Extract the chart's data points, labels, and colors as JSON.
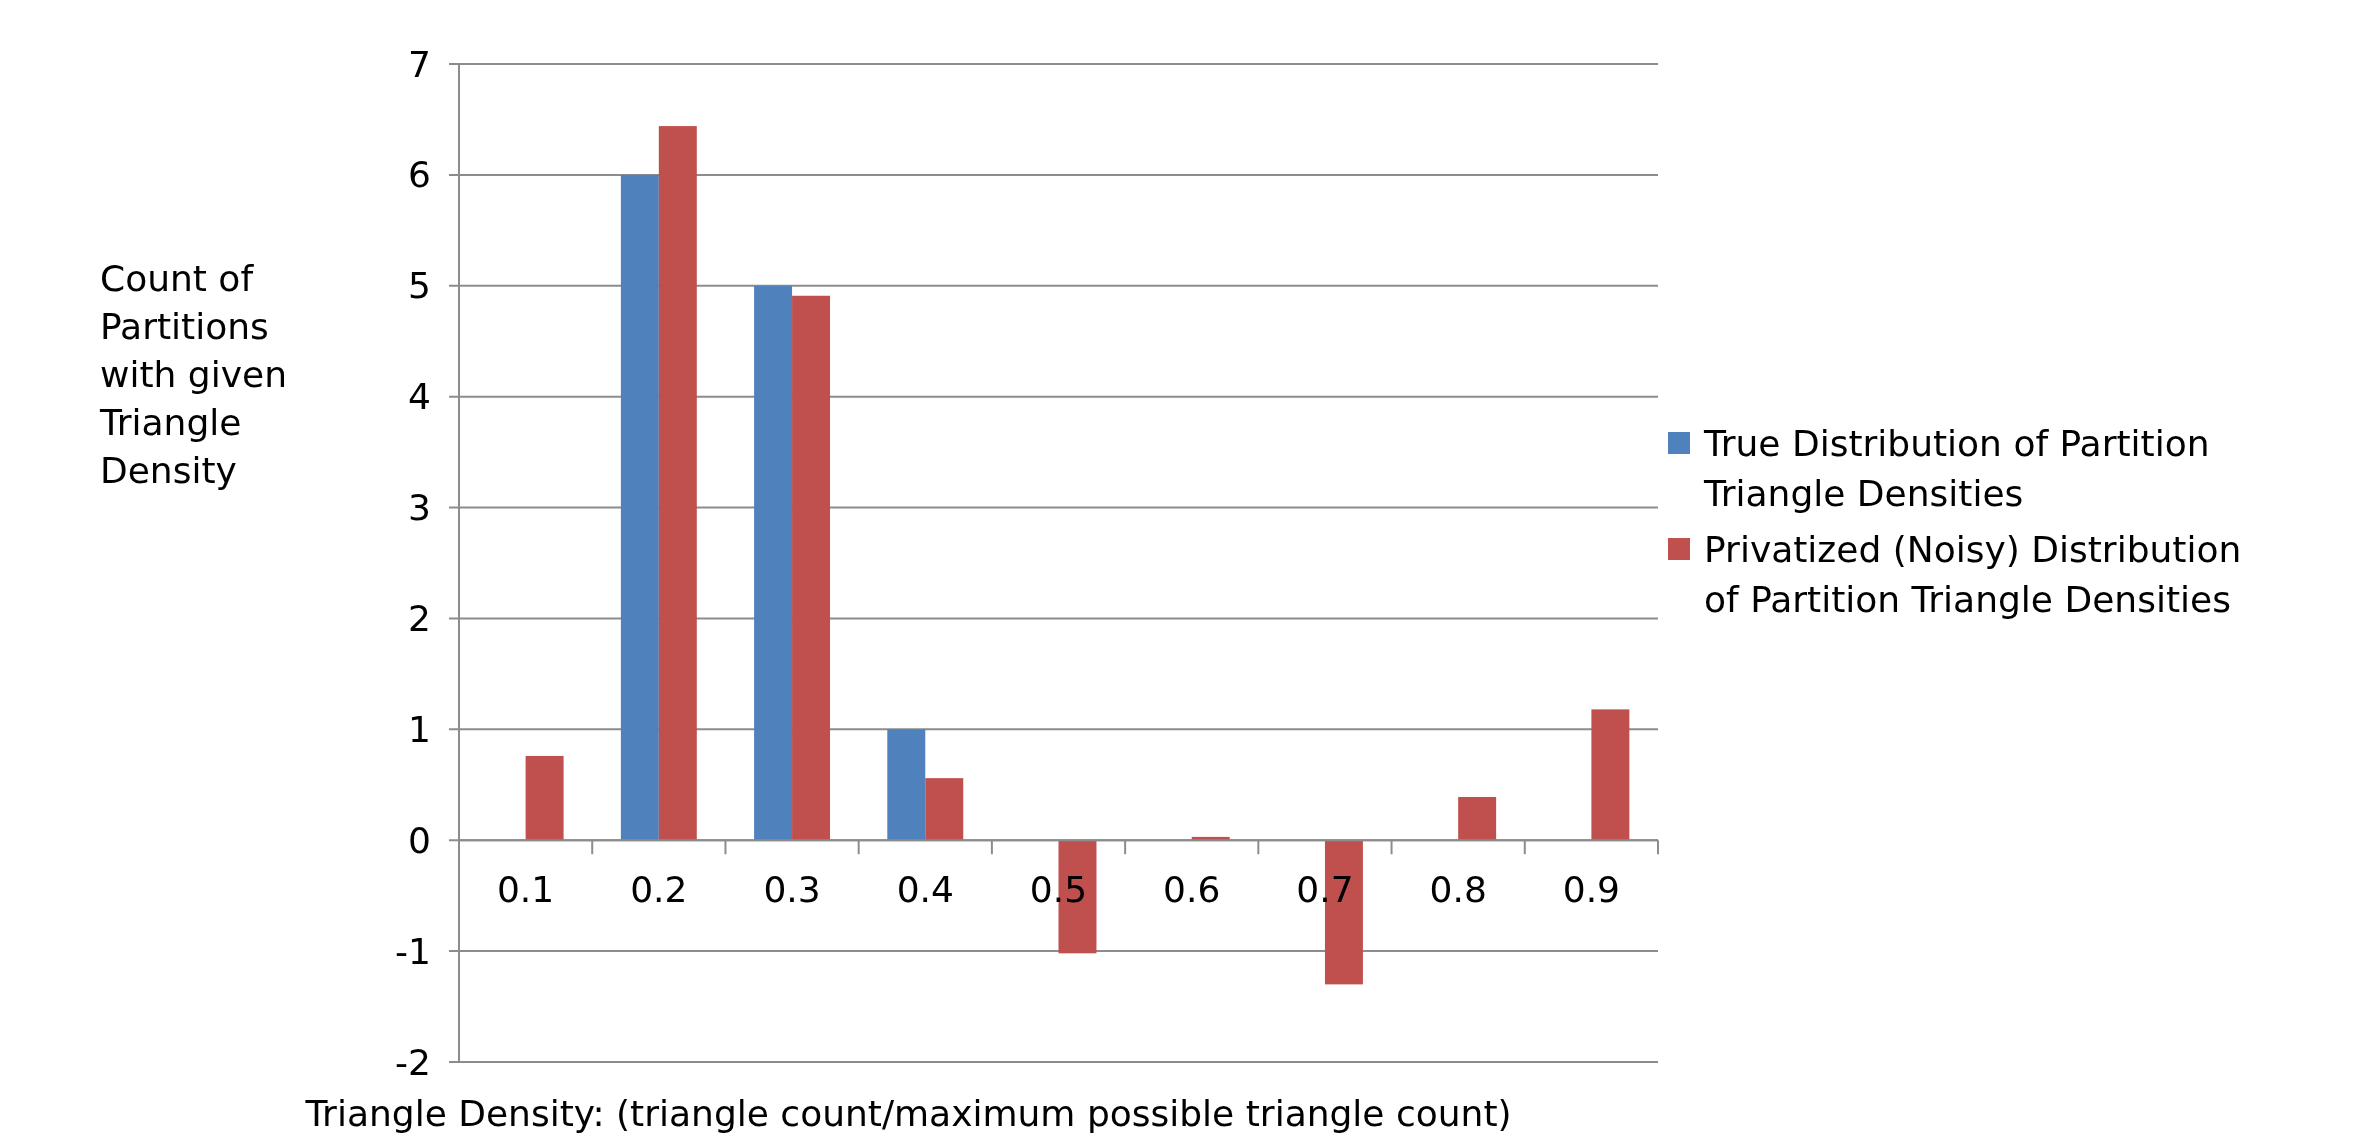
{
  "chart_data": {
    "type": "bar",
    "xlabel": "Triangle Density: (triangle count/maximum possible triangle count)",
    "ylabel": "Count of Partitions with given Triangle Density",
    "categories": [
      "0.1",
      "0.2",
      "0.3",
      "0.4",
      "0.5",
      "0.6",
      "0.7",
      "0.8",
      "0.9"
    ],
    "series": [
      {
        "name": "True Distribution of Partition Triangle Densities",
        "color": "#4f81bd",
        "values": [
          0,
          6,
          5,
          1,
          0,
          0,
          0,
          0,
          0
        ]
      },
      {
        "name": "Privatized (Noisy) Distribution of Partition Triangle Densities",
        "color": "#c0504d",
        "values": [
          0.76,
          6.44,
          4.91,
          0.56,
          -1.02,
          0.03,
          -1.3,
          0.39,
          1.18
        ]
      }
    ],
    "ylim": [
      -2,
      7
    ],
    "yticks": [
      -2,
      -1,
      0,
      1,
      2,
      3,
      4,
      5,
      6,
      7
    ],
    "grid": "y",
    "legend": "right"
  }
}
